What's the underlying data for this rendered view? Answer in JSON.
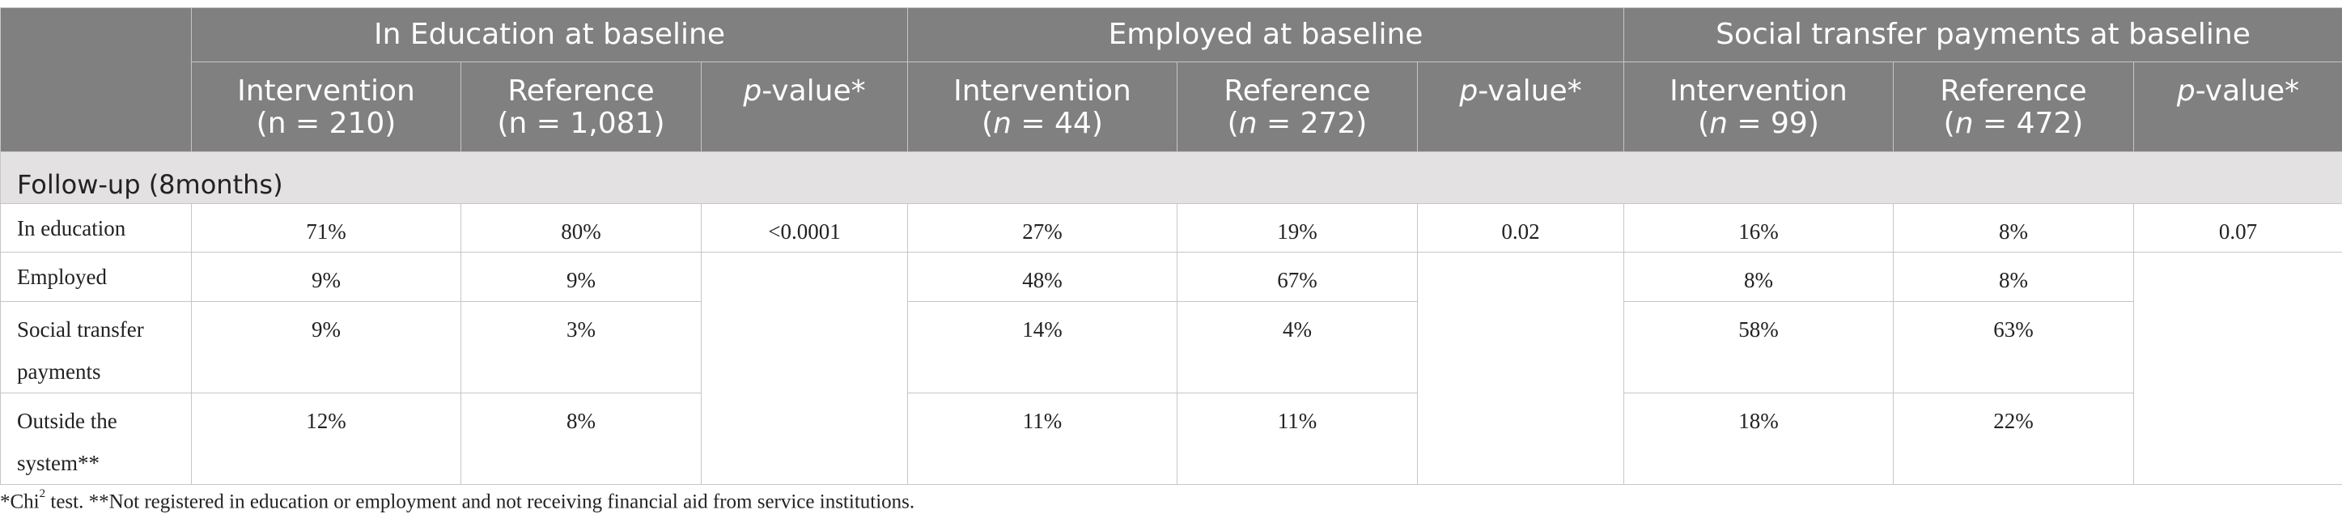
{
  "groups": {
    "education": "In Education at baseline",
    "employed": "Employed at baseline",
    "social": "Social transfer payments at baseline"
  },
  "subheaders": {
    "intervention": "Intervention",
    "reference": "Reference",
    "p_letter": "p",
    "p_suffix": "-value*",
    "n_label": "n",
    "education_intervention_n": "(n = 210)",
    "education_reference_n": "(n = 1,081)",
    "employed_intervention_n": "44)",
    "employed_reference_n": "272)",
    "social_intervention_n": "99)",
    "social_reference_n": "472)",
    "n_prefix": "(",
    "n_eq": " = "
  },
  "section_label": "Follow-up (8months)",
  "rows": [
    {
      "label": "In education",
      "edu_int": "71%",
      "edu_ref": "80%",
      "edu_p": "<0.0001",
      "emp_int": "27%",
      "emp_ref": "19%",
      "emp_p": "0.02",
      "soc_int": "16%",
      "soc_ref": "8%",
      "soc_p": "0.07"
    },
    {
      "label": "Employed",
      "edu_int": "9%",
      "edu_ref": "9%",
      "emp_int": "48%",
      "emp_ref": "67%",
      "soc_int": "8%",
      "soc_ref": "8%"
    },
    {
      "label_line1": "Social transfer",
      "label_line2": "payments",
      "edu_int": "9%",
      "edu_ref": "3%",
      "emp_int": "14%",
      "emp_ref": "4%",
      "soc_int": "58%",
      "soc_ref": "63%"
    },
    {
      "label_line1": "Outside the",
      "label_line2": "system**",
      "edu_int": "12%",
      "edu_ref": "8%",
      "emp_int": "11%",
      "emp_ref": "11%",
      "soc_int": "18%",
      "soc_ref": "22%"
    }
  ],
  "footnote": {
    "chi_prefix": "*Chi",
    "chi_sup": "2",
    "rest": " test. **Not registered in education or employment and not receiving financial aid from service institutions."
  }
}
